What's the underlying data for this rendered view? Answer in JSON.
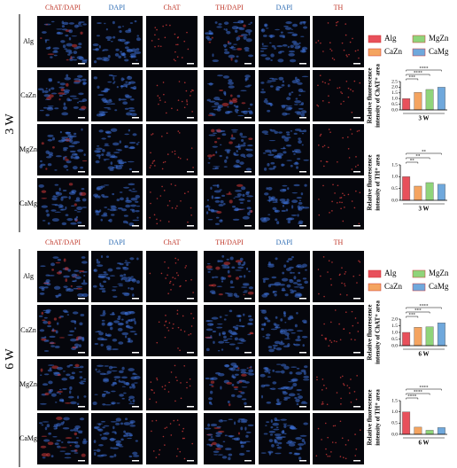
{
  "panels": [
    {
      "side": "3 W",
      "headers": [
        {
          "text": "ChAT/DAPI",
          "color": "#c0392b"
        },
        {
          "text": "DAPI",
          "color": "#2e6db4"
        },
        {
          "text": "ChAT",
          "color": "#c0392b"
        },
        {
          "text": "TH/DAPI",
          "color": "#c0392b"
        },
        {
          "text": "DAPI",
          "color": "#2e6db4"
        },
        {
          "text": "TH",
          "color": "#c0392b"
        }
      ],
      "rows": [
        "Alg",
        "CaZn",
        "MgZn",
        "CaMg"
      ],
      "legend": [
        {
          "name": "Alg",
          "color": "#e8505b"
        },
        {
          "name": "MgZn",
          "color": "#8fd47a"
        },
        {
          "name": "CaZn",
          "color": "#f4a460"
        },
        {
          "name": "CaMg",
          "color": "#6fa8dc"
        }
      ]
    },
    {
      "side": "6 W",
      "headers": [
        {
          "text": "ChAT/DAPI",
          "color": "#c0392b"
        },
        {
          "text": "DAPI",
          "color": "#2e6db4"
        },
        {
          "text": "ChAT",
          "color": "#c0392b"
        },
        {
          "text": "TH/DAPI",
          "color": "#c0392b"
        },
        {
          "text": "DAPI",
          "color": "#2e6db4"
        },
        {
          "text": "TH",
          "color": "#c0392b"
        }
      ],
      "rows": [
        "Alg",
        "CaZn",
        "MgZn",
        "CaMg"
      ],
      "legend": [
        {
          "name": "Alg",
          "color": "#e8505b"
        },
        {
          "name": "MgZn",
          "color": "#8fd47a"
        },
        {
          "name": "CaZn",
          "color": "#f4a460"
        },
        {
          "name": "CaMg",
          "color": "#6fa8dc"
        }
      ]
    }
  ],
  "chart_data": [
    {
      "type": "bar",
      "ylabel": [
        "Relative fluorescence",
        "intensity of ChAT⁺ area"
      ],
      "xlabel": "3 W",
      "values": [
        1.0,
        1.55,
        1.8,
        2.0
      ],
      "colors": [
        "#e8505b",
        "#f4a460",
        "#8fd47a",
        "#6fa8dc"
      ],
      "ylim": [
        0,
        2.5
      ],
      "yticks": [
        {
          "value": 0,
          "label": "0.0"
        },
        {
          "value": 0.5,
          "label": "0.5"
        },
        {
          "value": 1,
          "label": "1.0"
        },
        {
          "value": 1.5,
          "label": "1.5"
        },
        {
          "value": 2,
          "label": "2.0"
        },
        {
          "value": 2.5,
          "label": "2.5"
        }
      ],
      "significance": [
        "***",
        "****",
        "****"
      ]
    },
    {
      "type": "bar",
      "ylabel": [
        "Relative fluorescence",
        "intensity of TH⁺ area"
      ],
      "xlabel": "3 W",
      "values": [
        1.0,
        0.6,
        0.75,
        0.68
      ],
      "colors": [
        "#e8505b",
        "#f4a460",
        "#8fd47a",
        "#6fa8dc"
      ],
      "ylim": [
        0,
        1.5
      ],
      "yticks": [
        {
          "value": 0,
          "label": "0.0"
        },
        {
          "value": 0.5,
          "label": "0.5"
        },
        {
          "value": 1,
          "label": "1.0"
        },
        {
          "value": 1.5,
          "label": "1.5"
        }
      ],
      "significance": [
        "**",
        "**",
        "**"
      ]
    },
    {
      "type": "bar",
      "ylabel": [
        "Relative fluorescence",
        "intensity of ChAT⁺ area"
      ],
      "xlabel": "6 W",
      "values": [
        1.0,
        1.38,
        1.42,
        1.72
      ],
      "colors": [
        "#e8505b",
        "#f4a460",
        "#8fd47a",
        "#6fa8dc"
      ],
      "ylim": [
        0,
        2.0
      ],
      "yticks": [
        {
          "value": 0,
          "label": "0.0"
        },
        {
          "value": 0.5,
          "label": "0.5"
        },
        {
          "value": 1,
          "label": "1.0"
        },
        {
          "value": 1.5,
          "label": "1.5"
        },
        {
          "value": 2,
          "label": "2.0"
        }
      ],
      "significance": [
        "***",
        "***",
        "****"
      ]
    },
    {
      "type": "bar",
      "ylabel": [
        "Relative fluorescence",
        "intensity of TH⁺ area"
      ],
      "xlabel": "6 W",
      "values": [
        1.0,
        0.32,
        0.18,
        0.3
      ],
      "colors": [
        "#e8505b",
        "#f4a460",
        "#8fd47a",
        "#6fa8dc"
      ],
      "ylim": [
        0,
        1.5
      ],
      "yticks": [
        {
          "value": 0,
          "label": "0.0"
        },
        {
          "value": 0.5,
          "label": "0.5"
        },
        {
          "value": 1,
          "label": "1.0"
        },
        {
          "value": 1.5,
          "label": "1.5"
        }
      ],
      "significance": [
        "****",
        "****",
        "****"
      ]
    }
  ]
}
